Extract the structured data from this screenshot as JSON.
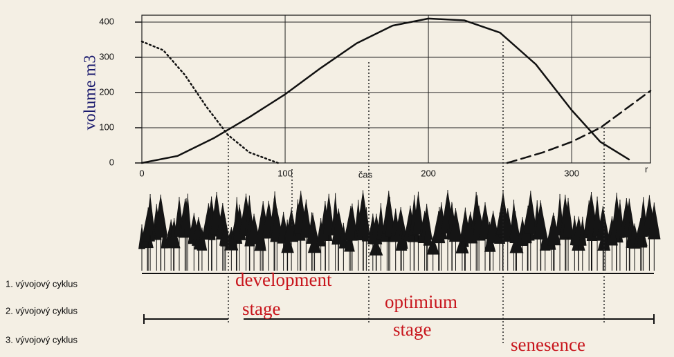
{
  "chart_data": {
    "type": "line",
    "ylabel": "volume m3",
    "xlabel": "čas",
    "xunit": "r",
    "xlim": [
      0,
      355
    ],
    "ylim": [
      0,
      400
    ],
    "xticks": [
      0,
      100,
      200,
      300
    ],
    "yticks": [
      0,
      100,
      200,
      300,
      400
    ],
    "grid": true,
    "series": [
      {
        "color": "#111111",
        "style": "solid",
        "x": [
          0,
          25,
          50,
          75,
          100,
          125,
          150,
          175,
          200,
          225,
          250,
          275,
          300,
          320,
          340
        ],
        "values": [
          0,
          20,
          70,
          130,
          195,
          270,
          340,
          390,
          410,
          405,
          370,
          280,
          150,
          60,
          10
        ]
      },
      {
        "color": "#111111",
        "style": "dotted",
        "x": [
          0,
          15,
          30,
          45,
          60,
          75,
          95
        ],
        "values": [
          345,
          320,
          250,
          160,
          80,
          30,
          0
        ]
      },
      {
        "color": "#111111",
        "style": "dashed",
        "x": [
          255,
          280,
          300,
          320,
          340,
          355
        ],
        "values": [
          0,
          30,
          60,
          100,
          160,
          205
        ]
      }
    ],
    "cycle_labels": [
      "1. vývojový cyklus",
      "2. vývojový cyklus",
      "3. vývojový cyklus"
    ],
    "annotations": [
      "development",
      "stage",
      "optimium",
      "stage",
      "senesence"
    ]
  }
}
